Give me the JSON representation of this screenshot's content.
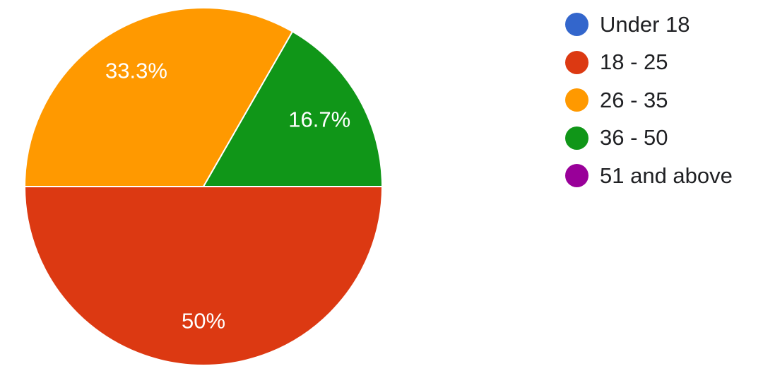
{
  "chart_data": {
    "type": "pie",
    "categories": [
      "Under 18",
      "18 - 25",
      "26 - 35",
      "36 - 50",
      "51 and above"
    ],
    "values": [
      0,
      50,
      33.3,
      16.7,
      0
    ],
    "slice_labels": [
      "",
      "50%",
      "33.3%",
      "16.7%",
      ""
    ],
    "colors": [
      "#3366cc",
      "#dc3912",
      "#ff9900",
      "#109618",
      "#990099"
    ],
    "legend": {
      "placement": "right",
      "entries": [
        "Under 18",
        "18 - 25",
        "26 - 35",
        "36 - 50",
        "51 and above"
      ]
    }
  }
}
